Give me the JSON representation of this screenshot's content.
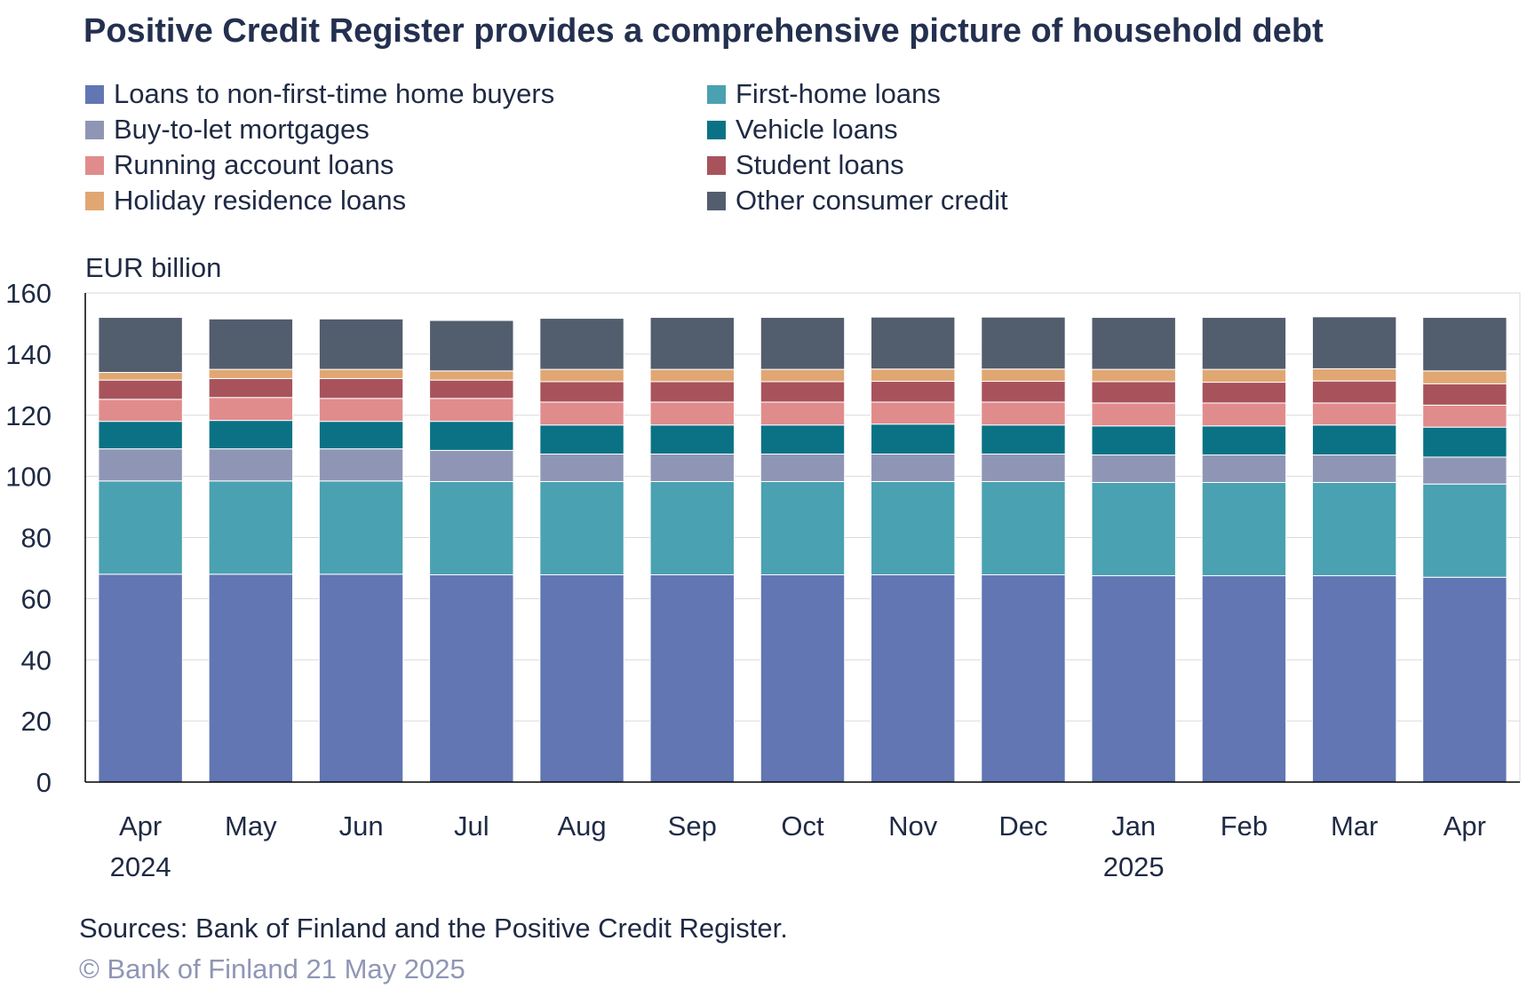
{
  "chart_data": {
    "type": "bar",
    "stacked": true,
    "title": "Positive Credit Register provides a comprehensive picture of household debt",
    "ylabel": "EUR billion",
    "ylim": [
      0,
      160
    ],
    "yticks": [
      0,
      20,
      40,
      60,
      80,
      100,
      120,
      140,
      160
    ],
    "grid": true,
    "legend_position": "top",
    "categories": [
      "Apr",
      "May",
      "Jun",
      "Jul",
      "Aug",
      "Sep",
      "Oct",
      "Nov",
      "Dec",
      "Jan",
      "Feb",
      "Mar",
      "Apr"
    ],
    "category_years": [
      "2024",
      "",
      "",
      "",
      "",
      "",
      "",
      "",
      "",
      "2025",
      "",
      "",
      ""
    ],
    "series": [
      {
        "name": "Loans to non-first-time home buyers",
        "color": "#6176b3",
        "values": [
          68.0,
          68.0,
          68.0,
          67.8,
          67.8,
          67.8,
          67.8,
          67.8,
          67.8,
          67.5,
          67.5,
          67.5,
          67.0
        ]
      },
      {
        "name": "First-home loans",
        "color": "#4aa1b1",
        "values": [
          30.5,
          30.5,
          30.5,
          30.5,
          30.5,
          30.5,
          30.5,
          30.5,
          30.5,
          30.5,
          30.5,
          30.5,
          30.5
        ]
      },
      {
        "name": "Buy-to-let mortgages",
        "color": "#8f96b5",
        "values": [
          10.5,
          10.5,
          10.5,
          10.2,
          9.0,
          9.0,
          9.0,
          9.0,
          9.0,
          9.0,
          9.0,
          9.0,
          8.8
        ]
      },
      {
        "name": "Vehicle loans",
        "color": "#0b7285",
        "values": [
          9.0,
          9.3,
          9.0,
          9.5,
          9.5,
          9.5,
          9.5,
          9.8,
          9.5,
          9.5,
          9.5,
          9.8,
          9.8
        ]
      },
      {
        "name": "Running account loans",
        "color": "#e08c8c",
        "values": [
          7.2,
          7.5,
          7.5,
          7.5,
          7.5,
          7.5,
          7.5,
          7.2,
          7.5,
          7.5,
          7.5,
          7.2,
          7.2
        ]
      },
      {
        "name": "Student loans",
        "color": "#a8535c",
        "values": [
          6.3,
          6.2,
          6.5,
          6.0,
          6.7,
          6.7,
          6.7,
          6.8,
          6.8,
          7.0,
          6.8,
          7.2,
          7.0
        ]
      },
      {
        "name": "Holiday residence loans",
        "color": "#e0a773",
        "values": [
          2.5,
          3.0,
          3.0,
          3.0,
          4.0,
          4.0,
          4.0,
          4.0,
          4.0,
          4.0,
          4.2,
          4.0,
          4.2
        ]
      },
      {
        "name": "Other consumer credit",
        "color": "#525d6e",
        "values": [
          18.0,
          16.5,
          16.5,
          16.5,
          16.7,
          17.0,
          17.0,
          17.0,
          17.0,
          17.0,
          17.0,
          17.0,
          17.5
        ]
      }
    ]
  },
  "footer": {
    "sources": "Sources: Bank of Finland and the Positive Credit Register.",
    "copyright": "© Bank of Finland 21 May 2025"
  }
}
